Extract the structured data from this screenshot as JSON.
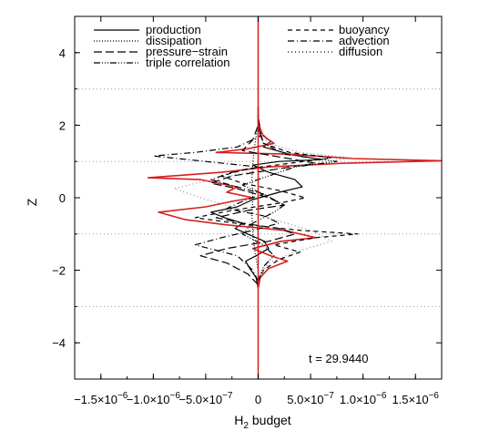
{
  "chart_data": {
    "type": "line",
    "title": "",
    "xlabel": "H",
    "xlabel_sub": "2",
    "xlabel_rest": " budget",
    "ylabel": "Z",
    "xlim": [
      -1.75e-06,
      1.75e-06
    ],
    "ylim": [
      -5,
      5
    ],
    "x_ticks": [
      {
        "value": -1.5e-06,
        "mant": "−1.5×10",
        "exp": "−6"
      },
      {
        "value": -1e-06,
        "mant": "−1.0×10",
        "exp": "−6"
      },
      {
        "value": -5e-07,
        "mant": "−5.0×10",
        "exp": "−7"
      },
      {
        "value": 0,
        "mant": "0",
        "exp": ""
      },
      {
        "value": 5e-07,
        "mant": "5.0×10",
        "exp": "−7"
      },
      {
        "value": 1e-06,
        "mant": "1.0×10",
        "exp": "−6"
      },
      {
        "value": 1.5e-06,
        "mant": "1.5×10",
        "exp": "−6"
      }
    ],
    "y_ticks": [
      {
        "value": -4,
        "label": "−4"
      },
      {
        "value": -2,
        "label": "−2"
      },
      {
        "value": 0,
        "label": "0"
      },
      {
        "value": 2,
        "label": "2"
      },
      {
        "value": 4,
        "label": "4"
      }
    ],
    "hlines": [
      3,
      1,
      -1,
      -3
    ],
    "vline_x": 0,
    "annotation": "t = 29.9440",
    "legend_left": [
      {
        "name": "production",
        "dash": ""
      },
      {
        "name": "dissipation",
        "dash": "1,2"
      },
      {
        "name": "pressure−strain",
        "dash": "9,4"
      },
      {
        "name": "triple correlation",
        "dash": "7,2,1,2,1,2,1,2"
      }
    ],
    "legend_right": [
      {
        "name": "buoyancy",
        "dash": "5,4"
      },
      {
        "name": "advection",
        "dash": "7,3,1,3"
      },
      {
        "name": "diffusion",
        "dash": "1,3"
      }
    ],
    "series": [
      {
        "name": "production",
        "color": "#000000",
        "dash": "",
        "points": [
          [
            0,
            -2.5
          ],
          [
            -2e-08,
            -2.2
          ],
          [
            -8e-08,
            -1.95
          ],
          [
            -1.2e-07,
            -1.75
          ],
          [
            -2e-08,
            -1.6
          ],
          [
            1e-07,
            -1.4
          ],
          [
            6e-08,
            -1.2
          ],
          [
            -1e-07,
            -1.0
          ],
          [
            -2.2e-07,
            -0.85
          ],
          [
            -1.5e-07,
            -0.7
          ],
          [
            -3.2e-07,
            -0.55
          ],
          [
            -4.5e-07,
            -0.4
          ],
          [
            -2e-07,
            -0.25
          ],
          [
            -5e-08,
            -0.05
          ],
          [
            2e-07,
            0.15
          ],
          [
            4.2e-07,
            0.3
          ],
          [
            3.5e-07,
            0.5
          ],
          [
            1e-07,
            0.7
          ],
          [
            -5e-08,
            0.9
          ],
          [
            2e-07,
            1.0
          ],
          [
            6e-07,
            1.05
          ],
          [
            3e-07,
            1.2
          ],
          [
            5e-08,
            1.4
          ],
          [
            1.2e-07,
            1.55
          ],
          [
            2e-08,
            1.8
          ],
          [
            0,
            2.2
          ],
          [
            0,
            2.5
          ]
        ]
      },
      {
        "name": "production (red)",
        "color": "#d62020",
        "dash": "",
        "points": [
          [
            0,
            -2.5
          ],
          [
            2e-08,
            -2.2
          ],
          [
            1e-07,
            -1.95
          ],
          [
            2.8e-07,
            -1.75
          ],
          [
            1.2e-07,
            -1.6
          ],
          [
            -5e-08,
            -1.4
          ],
          [
            2.2e-07,
            -1.2
          ],
          [
            5.5e-07,
            -1.1
          ],
          [
            2.5e-07,
            -0.9
          ],
          [
            -3e-07,
            -0.75
          ],
          [
            -7e-07,
            -0.6
          ],
          [
            -9.5e-07,
            -0.4
          ],
          [
            -5e-07,
            -0.25
          ],
          [
            -2.5e-07,
            -0.1
          ],
          [
            -5e-08,
            0.0
          ],
          [
            -3e-07,
            0.15
          ],
          [
            -2e-07,
            0.3
          ],
          [
            -5.5e-07,
            0.5
          ],
          [
            -1.05e-06,
            0.55
          ],
          [
            -3.5e-07,
            0.7
          ],
          [
            1e-07,
            0.85
          ],
          [
            8e-07,
            0.95
          ],
          [
            1.75e-06,
            1.02
          ],
          [
            9e-07,
            1.08
          ],
          [
            3e-07,
            1.2
          ],
          [
            -4e-07,
            1.25
          ],
          [
            -1e-07,
            1.35
          ],
          [
            1.5e-07,
            1.5
          ],
          [
            5e-08,
            1.7
          ],
          [
            2e-08,
            1.9
          ],
          [
            0,
            2.2
          ],
          [
            0,
            2.5
          ]
        ]
      },
      {
        "name": "pressure-strain",
        "color": "#000000",
        "dash": "9,4",
        "points": [
          [
            0,
            -2.4
          ],
          [
            -1e-07,
            -2.1
          ],
          [
            -3e-07,
            -1.8
          ],
          [
            -5.5e-07,
            -1.6
          ],
          [
            -3e-07,
            -1.4
          ],
          [
            1e-07,
            -1.2
          ],
          [
            3.5e-07,
            -1.0
          ],
          [
            2e-07,
            -0.85
          ],
          [
            -1.5e-07,
            -0.7
          ],
          [
            -4e-07,
            -0.55
          ],
          [
            -1e-07,
            -0.35
          ],
          [
            2.5e-07,
            -0.2
          ],
          [
            1e-07,
            0.0
          ],
          [
            -2e-07,
            0.25
          ],
          [
            -4.5e-07,
            0.4
          ],
          [
            -2.5e-07,
            0.6
          ],
          [
            2e-07,
            0.8
          ],
          [
            5.5e-07,
            0.95
          ],
          [
            2.5e-07,
            1.1
          ],
          [
            -1.5e-07,
            1.3
          ],
          [
            -5e-08,
            1.6
          ],
          [
            0,
            2.0
          ],
          [
            0,
            2.4
          ]
        ]
      },
      {
        "name": "buoyancy",
        "color": "#000000",
        "dash": "5,4",
        "points": [
          [
            0,
            -2.3
          ],
          [
            5e-08,
            -2.0
          ],
          [
            2e-07,
            -1.7
          ],
          [
            4e-07,
            -1.5
          ],
          [
            1.5e-07,
            -1.3
          ],
          [
            5.5e-07,
            -1.1
          ],
          [
            9.5e-07,
            -1.0
          ],
          [
            4e-07,
            -0.9
          ],
          [
            -1e-07,
            -0.75
          ],
          [
            -6e-07,
            -0.55
          ],
          [
            -2.5e-07,
            -0.35
          ],
          [
            2e-07,
            -0.15
          ],
          [
            4.5e-07,
            0.0
          ],
          [
            2e-07,
            0.2
          ],
          [
            -1.5e-07,
            0.4
          ],
          [
            -3.5e-07,
            0.6
          ],
          [
            -1e-07,
            0.8
          ],
          [
            3e-07,
            0.95
          ],
          [
            7e-07,
            1.1
          ],
          [
            3e-07,
            1.25
          ],
          [
            5e-08,
            1.5
          ],
          [
            0,
            1.9
          ],
          [
            0,
            2.3
          ]
        ]
      },
      {
        "name": "advection",
        "color": "#000000",
        "dash": "7,3,1,3",
        "points": [
          [
            0,
            -2.3
          ],
          [
            -5e-08,
            -2.0
          ],
          [
            -2e-07,
            -1.6
          ],
          [
            -6e-07,
            -1.3
          ],
          [
            -3.5e-07,
            -1.1
          ],
          [
            -5e-08,
            -0.9
          ],
          [
            2e-07,
            -0.7
          ],
          [
            5e-08,
            -0.5
          ],
          [
            -3e-07,
            -0.3
          ],
          [
            -1.5e-07,
            -0.1
          ],
          [
            5e-08,
            0.1
          ],
          [
            -2e-07,
            0.3
          ],
          [
            -4.5e-07,
            0.5
          ],
          [
            -2.5e-07,
            0.7
          ],
          [
            0.0,
            0.85
          ],
          [
            -5e-07,
            1.0
          ],
          [
            -1e-06,
            1.15
          ],
          [
            -6e-07,
            1.25
          ],
          [
            -2e-07,
            1.4
          ],
          [
            2e-08,
            1.7
          ],
          [
            0,
            2.3
          ]
        ]
      },
      {
        "name": "triple correlation",
        "color": "#000000",
        "dash": "7,2,1,2,1,2,1,2",
        "points": [
          [
            0,
            -2.3
          ],
          [
            5e-08,
            -1.9
          ],
          [
            1.5e-07,
            -1.6
          ],
          [
            5e-08,
            -1.3
          ],
          [
            -1.5e-07,
            -1.0
          ],
          [
            -5e-08,
            -0.7
          ],
          [
            1.5e-07,
            -0.4
          ],
          [
            2.5e-07,
            -0.2
          ],
          [
            5e-08,
            0.1
          ],
          [
            -1.5e-07,
            0.35
          ],
          [
            1e-07,
            0.6
          ],
          [
            3.5e-07,
            0.85
          ],
          [
            7.5e-07,
            1.0
          ],
          [
            2.5e-07,
            1.2
          ],
          [
            5e-08,
            1.5
          ],
          [
            0,
            2.0
          ],
          [
            0,
            2.3
          ]
        ]
      },
      {
        "name": "diffusion",
        "color": "#8c8c8c",
        "dash": "1,3",
        "points": [
          [
            0,
            -2.2
          ],
          [
            1e-07,
            -1.8
          ],
          [
            3.5e-07,
            -1.5
          ],
          [
            7e-07,
            -1.2
          ],
          [
            5e-07,
            -0.9
          ],
          [
            1.5e-07,
            -0.6
          ],
          [
            -2e-07,
            -0.3
          ],
          [
            -5.5e-07,
            0.0
          ],
          [
            -8e-07,
            0.25
          ],
          [
            -4.5e-07,
            0.5
          ],
          [
            -1e-07,
            0.7
          ],
          [
            3e-07,
            0.85
          ],
          [
            6.5e-07,
            1.0
          ],
          [
            9e-07,
            1.1
          ],
          [
            4e-07,
            1.25
          ],
          [
            1e-07,
            1.5
          ],
          [
            0,
            1.9
          ],
          [
            0,
            2.2
          ]
        ]
      },
      {
        "name": "dissipation",
        "color": "#000000",
        "dash": "1,2",
        "points": [
          [
            0,
            -2.0
          ],
          [
            -3e-08,
            -1.5
          ],
          [
            -5e-08,
            -1.0
          ],
          [
            -6e-08,
            -0.5
          ],
          [
            -5e-08,
            0.0
          ],
          [
            -6e-08,
            0.5
          ],
          [
            -5e-08,
            1.0
          ],
          [
            -3e-08,
            1.5
          ],
          [
            0,
            2.0
          ]
        ]
      }
    ]
  }
}
